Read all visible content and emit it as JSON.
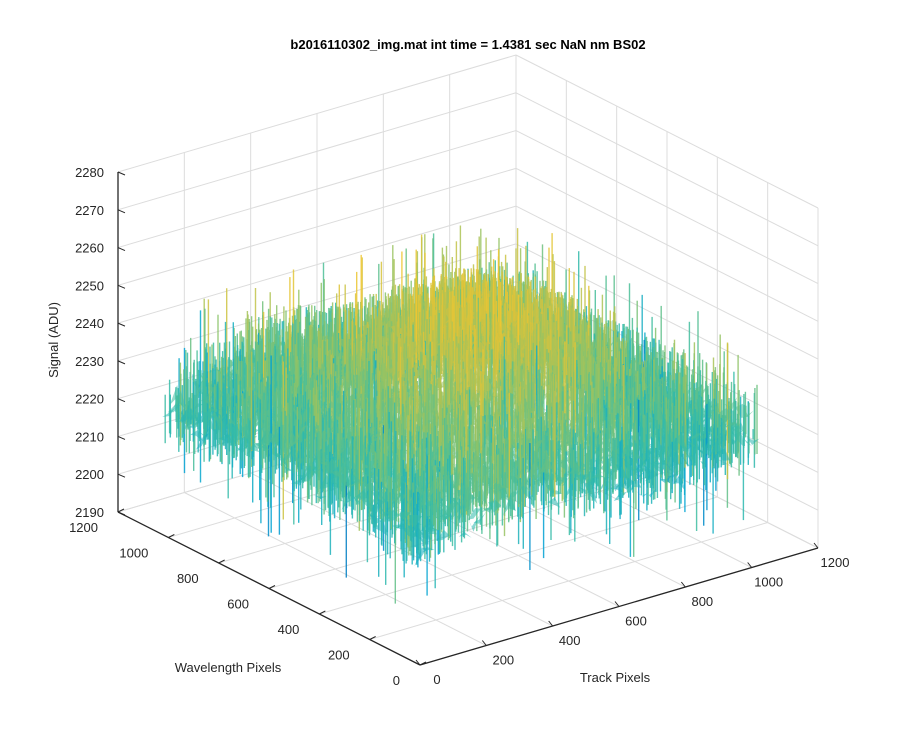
{
  "chart_data": {
    "type": "surface",
    "title": "b2016110302_img.mat int time = 1.4381 sec  NaN nm BS02",
    "xlabel": "Track Pixels",
    "ylabel": "Wavelength Pixels",
    "zlabel": "Signal (ADU)",
    "xlim": [
      0,
      1200
    ],
    "ylim": [
      0,
      1200
    ],
    "zlim": [
      2190,
      2280
    ],
    "x_ticks": [
      "0",
      "200",
      "400",
      "600",
      "800",
      "1000",
      "1200"
    ],
    "y_ticks": [
      "0",
      "200",
      "400",
      "600",
      "800",
      "1000",
      "1200"
    ],
    "z_ticks": [
      "2190",
      "2200",
      "2210",
      "2220",
      "2230",
      "2240",
      "2250",
      "2260",
      "2270",
      "2280"
    ],
    "data_extent": {
      "x": [
        0,
        1024
      ],
      "y": [
        0,
        1024
      ]
    },
    "signal_summary": {
      "mean": 2225,
      "typical_min": 2200,
      "typical_max": 2268,
      "center_peak": 2245,
      "edge_level": 2220
    },
    "grid": true,
    "colormap": [
      "#0072bd",
      "#00a4d4",
      "#36bca7",
      "#8ac36a",
      "#d8c33c",
      "#f0c730"
    ]
  }
}
